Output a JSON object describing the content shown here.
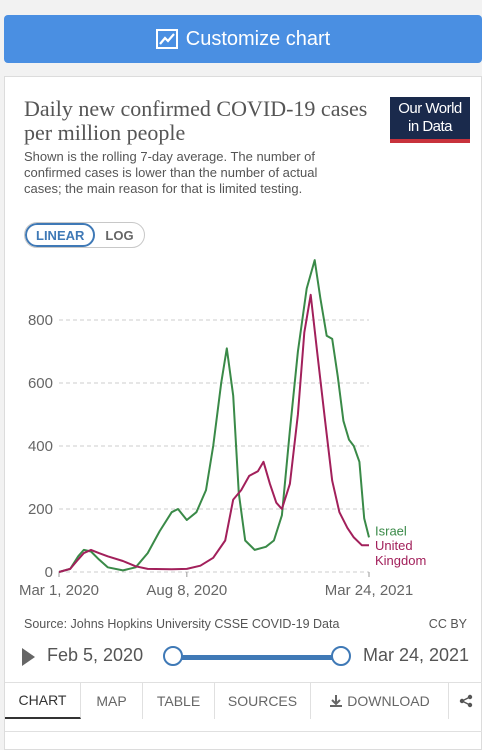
{
  "customize": {
    "label": "Customize chart",
    "icon": "line-chart-icon"
  },
  "header": {
    "title": "Daily new confirmed COVID-19 cases per million people",
    "subtitle": "Shown is the rolling 7-day average. The number of confirmed cases is lower than the number of actual cases; the main reason for that is limited testing.",
    "logo_line1": "Our World",
    "logo_line2": "in Data"
  },
  "scale_toggle": {
    "linear": "LINEAR",
    "log": "LOG",
    "selected": "LINEAR"
  },
  "chart_data": {
    "type": "line",
    "y_ticks": [
      "0",
      "200",
      "400",
      "600",
      "800"
    ],
    "x_ticks": [
      "Mar 1, 2020",
      "Aug 8, 2020",
      "Mar 24, 2021"
    ],
    "ylim": [
      0,
      1000
    ],
    "xlim": [
      "2020-03-01",
      "2021-03-24"
    ],
    "grid": "horizontal dashed",
    "series": [
      {
        "name": "Israel",
        "color": "#3a8a48",
        "points": [
          [
            "2020-03-01",
            0
          ],
          [
            "2020-03-15",
            10
          ],
          [
            "2020-03-25",
            50
          ],
          [
            "2020-04-01",
            70
          ],
          [
            "2020-04-10",
            65
          ],
          [
            "2020-04-20",
            40
          ],
          [
            "2020-05-01",
            15
          ],
          [
            "2020-05-20",
            5
          ],
          [
            "2020-06-05",
            15
          ],
          [
            "2020-06-20",
            60
          ],
          [
            "2020-07-05",
            130
          ],
          [
            "2020-07-20",
            190
          ],
          [
            "2020-07-28",
            200
          ],
          [
            "2020-08-08",
            165
          ],
          [
            "2020-08-20",
            190
          ],
          [
            "2020-09-01",
            260
          ],
          [
            "2020-09-10",
            400
          ],
          [
            "2020-09-20",
            600
          ],
          [
            "2020-09-27",
            710
          ],
          [
            "2020-10-05",
            560
          ],
          [
            "2020-10-12",
            250
          ],
          [
            "2020-10-20",
            100
          ],
          [
            "2020-11-01",
            70
          ],
          [
            "2020-11-15",
            80
          ],
          [
            "2020-11-25",
            100
          ],
          [
            "2020-12-05",
            180
          ],
          [
            "2020-12-15",
            450
          ],
          [
            "2020-12-25",
            700
          ],
          [
            "2021-01-05",
            900
          ],
          [
            "2021-01-15",
            990
          ],
          [
            "2021-01-22",
            870
          ],
          [
            "2021-01-30",
            750
          ],
          [
            "2021-02-06",
            740
          ],
          [
            "2021-02-13",
            620
          ],
          [
            "2021-02-20",
            480
          ],
          [
            "2021-02-27",
            420
          ],
          [
            "2021-03-05",
            400
          ],
          [
            "2021-03-12",
            350
          ],
          [
            "2021-03-18",
            170
          ],
          [
            "2021-03-24",
            110
          ]
        ]
      },
      {
        "name": "United Kingdom",
        "color": "#a2205b",
        "points": [
          [
            "2020-03-01",
            0
          ],
          [
            "2020-03-15",
            10
          ],
          [
            "2020-03-25",
            40
          ],
          [
            "2020-04-01",
            60
          ],
          [
            "2020-04-10",
            70
          ],
          [
            "2020-04-20",
            60
          ],
          [
            "2020-05-01",
            50
          ],
          [
            "2020-05-20",
            35
          ],
          [
            "2020-06-05",
            18
          ],
          [
            "2020-06-20",
            10
          ],
          [
            "2020-07-20",
            9
          ],
          [
            "2020-08-08",
            10
          ],
          [
            "2020-08-25",
            20
          ],
          [
            "2020-09-10",
            45
          ],
          [
            "2020-09-25",
            100
          ],
          [
            "2020-10-05",
            230
          ],
          [
            "2020-10-15",
            260
          ],
          [
            "2020-10-25",
            305
          ],
          [
            "2020-11-05",
            320
          ],
          [
            "2020-11-12",
            350
          ],
          [
            "2020-11-20",
            280
          ],
          [
            "2020-11-28",
            220
          ],
          [
            "2020-12-05",
            200
          ],
          [
            "2020-12-15",
            280
          ],
          [
            "2020-12-25",
            500
          ],
          [
            "2021-01-02",
            760
          ],
          [
            "2021-01-10",
            880
          ],
          [
            "2021-01-18",
            700
          ],
          [
            "2021-01-28",
            480
          ],
          [
            "2021-02-06",
            290
          ],
          [
            "2021-02-15",
            190
          ],
          [
            "2021-02-25",
            140
          ],
          [
            "2021-03-05",
            110
          ],
          [
            "2021-03-15",
            85
          ],
          [
            "2021-03-24",
            85
          ]
        ]
      }
    ]
  },
  "source": {
    "text": "Source: Johns Hopkins University CSSE COVID-19 Data",
    "license": "CC BY"
  },
  "timeline": {
    "start": "Feb 5, 2020",
    "end": "Mar 24, 2021"
  },
  "tabs": {
    "chart": "CHART",
    "map": "MAP",
    "table": "TABLE",
    "sources": "SOURCES",
    "download": "DOWNLOAD",
    "active": "CHART"
  }
}
